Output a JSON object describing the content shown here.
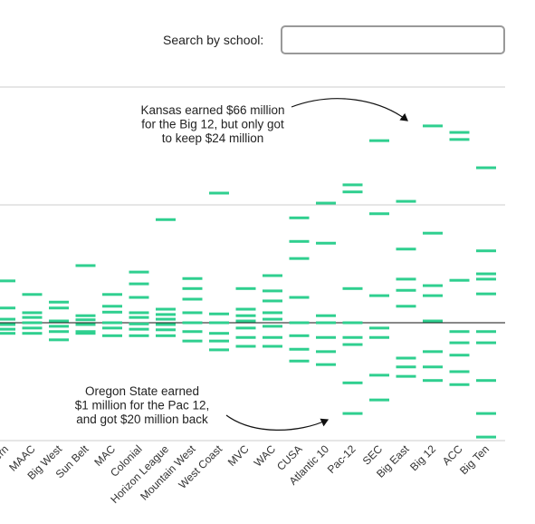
{
  "search": {
    "label": "Search by school:"
  },
  "chart_data": {
    "type": "strip",
    "categories": [
      "ern",
      "MAAC",
      "Big West",
      "Sun Belt",
      "MAC",
      "Colonial",
      "Horizon League",
      "Mountain West",
      "West Coast",
      "MVC",
      "WAC",
      "CUSA",
      "Atlantic 10",
      "Pac-12",
      "SEC",
      "Big East",
      "Big 12",
      "ACC",
      "Big Ten"
    ],
    "values": [
      [
        7.1,
        2.5,
        0.6,
        -0.3,
        -1.1,
        -1.8
      ],
      [
        4.8,
        1.7,
        0.9,
        0,
        -0.9,
        -1.8
      ],
      [
        3.5,
        2.5,
        0.3,
        -0.6,
        -1.5,
        -2.9
      ],
      [
        9.7,
        1.2,
        0.5,
        -0.3,
        -1.5,
        -1.8
      ],
      [
        4.8,
        2.8,
        1.8,
        0,
        -0.9,
        -2.2
      ],
      [
        8.6,
        6.6,
        4.3,
        1.7,
        0.9,
        -0.2,
        -1.1,
        -2.2
      ],
      [
        17.5,
        2.3,
        1.4,
        0.6,
        -0.3,
        -1.2,
        -2.2
      ],
      [
        7.5,
        5.8,
        4,
        1.7,
        0,
        -1.5,
        -3.1
      ],
      [
        22,
        1.5,
        0,
        -1.8,
        -3.1,
        -4.6
      ],
      [
        5.8,
        2.3,
        1.2,
        0.3,
        -0.9,
        -2.5,
        -4
      ],
      [
        8,
        5.4,
        3.7,
        1.7,
        0.6,
        -0.6,
        -2.5,
        -4
      ],
      [
        17.8,
        13.8,
        10.9,
        4.3,
        0,
        -2.2,
        -4.5,
        -6.5
      ],
      [
        20.3,
        13.5,
        1.2,
        0,
        -2.5,
        -4.9,
        -7.1
      ],
      [
        23.4,
        22.2,
        5.8,
        0,
        -2.5,
        -3.7,
        -10.2,
        -15.4
      ],
      [
        30.9,
        18.5,
        4.6,
        -0.9,
        -2.5,
        -8.9,
        -13.1
      ],
      [
        20.6,
        12.5,
        7.4,
        5.5,
        2.8,
        -6,
        -7.5,
        -9.1
      ],
      [
        33.4,
        15.2,
        6.3,
        4.6,
        0.3,
        -4.9,
        -7.5,
        -9.8
      ],
      [
        32.3,
        31.1,
        7.2,
        -1.5,
        -3.4,
        -5.5,
        -8.3,
        -10.5
      ],
      [
        26.3,
        12.2,
        8.3,
        7.4,
        4.9,
        -1.5,
        -3.4,
        -9.8,
        -15.4,
        -19.4
      ]
    ],
    "color": "#2fcf8f",
    "ylim": [
      -20,
      40
    ],
    "yticks": [
      -20,
      0,
      20,
      40
    ],
    "grid": true,
    "annotations": [
      {
        "lines": [
          "Kansas earned $66 million",
          "for the Big 12, but only got",
          "to keep $24 million"
        ]
      },
      {
        "lines": [
          "Oregon State earned",
          "$1 million for the Pac 12,",
          "and got $20 million back"
        ]
      }
    ]
  }
}
